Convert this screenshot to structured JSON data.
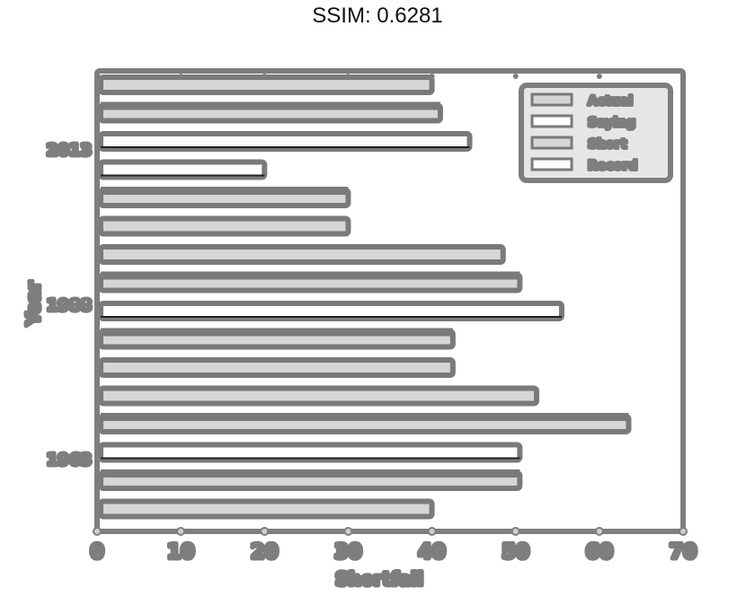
{
  "title": "SSIM: 0.6281",
  "colors": {
    "axis": "#7e7e7e",
    "bar_fill": "#d6d6d6",
    "bar_outline": "#7a7a7a",
    "dark": "#222222",
    "background": "#ffffff"
  },
  "chart_data": {
    "type": "bar",
    "orientation": "horizontal",
    "title": "SSIM: 0.6281",
    "xlabel": "Shortfall",
    "ylabel": "Year",
    "xlim": [
      0,
      70
    ],
    "x_ticks": [
      "0",
      "10",
      "20",
      "30",
      "40",
      "50",
      "60",
      "70"
    ],
    "y_tick_labels": [
      "2013",
      "1988",
      "1963"
    ],
    "legend": {
      "placement": "top-right",
      "entries": [
        "Actual",
        "Saying",
        "Short",
        "Record"
      ]
    },
    "bars": [
      {
        "value": 40.0,
        "style": "light"
      },
      {
        "value": 41.0,
        "style": "dark"
      },
      {
        "value": 44.5,
        "style": "white"
      },
      {
        "value": 20.0,
        "style": "white"
      },
      {
        "value": 30.0,
        "style": "dark"
      },
      {
        "value": 30.0,
        "style": "light"
      },
      {
        "value": 48.5,
        "style": "light"
      },
      {
        "value": 50.5,
        "style": "dark"
      },
      {
        "value": 55.5,
        "style": "white"
      },
      {
        "value": 42.5,
        "style": "dark"
      },
      {
        "value": 42.5,
        "style": "light"
      },
      {
        "value": 52.5,
        "style": "light"
      },
      {
        "value": 63.5,
        "style": "dark"
      },
      {
        "value": 50.5,
        "style": "white"
      },
      {
        "value": 50.5,
        "style": "dark"
      },
      {
        "value": 40.0,
        "style": "light"
      }
    ]
  }
}
